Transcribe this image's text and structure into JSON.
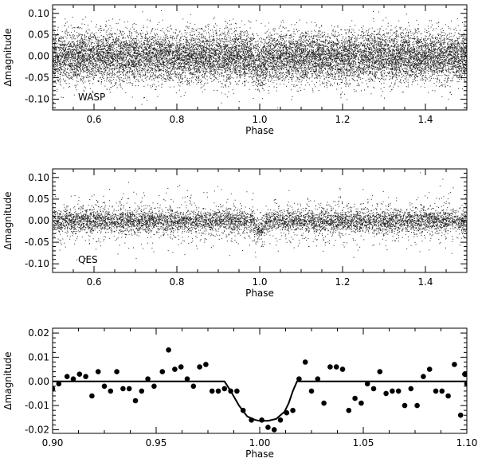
{
  "chart_data": [
    {
      "type": "scatter",
      "panel_label": "WASP",
      "xlabel": "Phase",
      "ylabel": "Δmagnitude",
      "xlim": [
        0.5,
        1.5
      ],
      "ylim": [
        -0.125,
        0.12
      ],
      "xticks": [
        "0.6",
        "0.8",
        "1.0",
        "1.2",
        "1.4"
      ],
      "yticks": [
        "-0.10",
        "-0.05",
        "0.00",
        "0.05",
        "0.10"
      ],
      "xtick_values": [
        0.6,
        0.8,
        1.0,
        1.2,
        1.4
      ],
      "ytick_values": [
        -0.1,
        -0.05,
        0.0,
        0.05,
        0.1
      ],
      "marker": "dot",
      "transit_center": 1.0,
      "transit_depth": 0.017,
      "transit_half_width": 0.017,
      "scatter_sigma": 0.03,
      "point_density": "dense"
    },
    {
      "type": "scatter",
      "panel_label": "QES",
      "xlabel": "Phase",
      "ylabel": "Δmagnitude",
      "xlim": [
        0.5,
        1.5
      ],
      "ylim": [
        -0.12,
        0.12
      ],
      "xticks": [
        "0.6",
        "0.8",
        "1.0",
        "1.2",
        "1.4"
      ],
      "yticks": [
        "-0.10",
        "-0.05",
        "0.00",
        "0.05",
        "0.10"
      ],
      "xtick_values": [
        0.6,
        0.8,
        1.0,
        1.2,
        1.4
      ],
      "ytick_values": [
        -0.1,
        -0.05,
        0.0,
        0.05,
        0.1
      ],
      "marker": "dot",
      "transit_center": 1.0,
      "transit_depth": 0.017,
      "transit_half_width": 0.017,
      "scatter_sigma": 0.012,
      "point_density": "medium"
    },
    {
      "type": "scatter",
      "panel_label": "",
      "xlabel": "Phase",
      "ylabel": "Δmagnitude",
      "xlim": [
        0.9,
        1.1
      ],
      "ylim": [
        -0.0215,
        0.022
      ],
      "xticks": [
        "0.90",
        "0.95",
        "1.00",
        "1.05",
        "1.10"
      ],
      "yticks": [
        "-0.02",
        "-0.01",
        "0.00",
        "0.01",
        "0.02"
      ],
      "xtick_values": [
        0.9,
        0.95,
        1.0,
        1.05,
        1.1
      ],
      "ytick_values": [
        -0.02,
        -0.01,
        0.0,
        0.01,
        0.02
      ],
      "marker": "filled-circle",
      "points": [
        [
          0.9,
          -0.003
        ],
        [
          0.903,
          -0.001
        ],
        [
          0.907,
          0.002
        ],
        [
          0.91,
          0.001
        ],
        [
          0.913,
          0.003
        ],
        [
          0.916,
          0.002
        ],
        [
          0.919,
          -0.006
        ],
        [
          0.922,
          0.004
        ],
        [
          0.925,
          -0.002
        ],
        [
          0.928,
          -0.004
        ],
        [
          0.931,
          0.004
        ],
        [
          0.934,
          -0.003
        ],
        [
          0.937,
          -0.003
        ],
        [
          0.94,
          -0.008
        ],
        [
          0.943,
          -0.004
        ],
        [
          0.946,
          0.001
        ],
        [
          0.949,
          -0.002
        ],
        [
          0.953,
          0.004
        ],
        [
          0.956,
          0.013
        ],
        [
          0.959,
          0.005
        ],
        [
          0.962,
          0.006
        ],
        [
          0.965,
          0.001
        ],
        [
          0.968,
          -0.002
        ],
        [
          0.971,
          0.006
        ],
        [
          0.974,
          0.007
        ],
        [
          0.977,
          -0.004
        ],
        [
          0.98,
          -0.004
        ],
        [
          0.983,
          -0.003
        ],
        [
          0.986,
          -0.004
        ],
        [
          0.989,
          -0.004
        ],
        [
          0.992,
          -0.012
        ],
        [
          0.996,
          -0.016
        ],
        [
          1.001,
          -0.016
        ],
        [
          1.004,
          -0.019
        ],
        [
          1.007,
          -0.02
        ],
        [
          1.01,
          -0.016
        ],
        [
          1.013,
          -0.013
        ],
        [
          1.016,
          -0.012
        ],
        [
          1.019,
          0.001
        ],
        [
          1.022,
          0.008
        ],
        [
          1.025,
          -0.004
        ],
        [
          1.028,
          0.001
        ],
        [
          1.031,
          -0.009
        ],
        [
          1.034,
          0.006
        ],
        [
          1.037,
          0.006
        ],
        [
          1.04,
          0.005
        ],
        [
          1.043,
          -0.012
        ],
        [
          1.046,
          -0.007
        ],
        [
          1.049,
          -0.009
        ],
        [
          1.052,
          -0.001
        ],
        [
          1.055,
          -0.003
        ],
        [
          1.058,
          0.004
        ],
        [
          1.061,
          -0.005
        ],
        [
          1.064,
          -0.004
        ],
        [
          1.067,
          -0.004
        ],
        [
          1.07,
          -0.01
        ],
        [
          1.073,
          -0.003
        ],
        [
          1.076,
          -0.01
        ],
        [
          1.079,
          0.002
        ],
        [
          1.082,
          0.005
        ],
        [
          1.085,
          -0.004
        ],
        [
          1.088,
          -0.004
        ],
        [
          1.091,
          -0.006
        ],
        [
          1.094,
          0.007
        ],
        [
          1.097,
          -0.014
        ],
        [
          1.099,
          0.003
        ],
        [
          1.1,
          -0.001
        ]
      ],
      "model_line": [
        [
          0.9,
          0.0
        ],
        [
          0.983,
          0.0
        ],
        [
          0.986,
          -0.004
        ],
        [
          0.99,
          -0.01
        ],
        [
          0.994,
          -0.0145
        ],
        [
          0.998,
          -0.016
        ],
        [
          1.0,
          -0.0163
        ],
        [
          1.004,
          -0.0163
        ],
        [
          1.008,
          -0.0155
        ],
        [
          1.012,
          -0.0125
        ],
        [
          1.014,
          -0.009
        ],
        [
          1.016,
          -0.004
        ],
        [
          1.018,
          0.0
        ],
        [
          1.1,
          0.0
        ]
      ]
    }
  ]
}
